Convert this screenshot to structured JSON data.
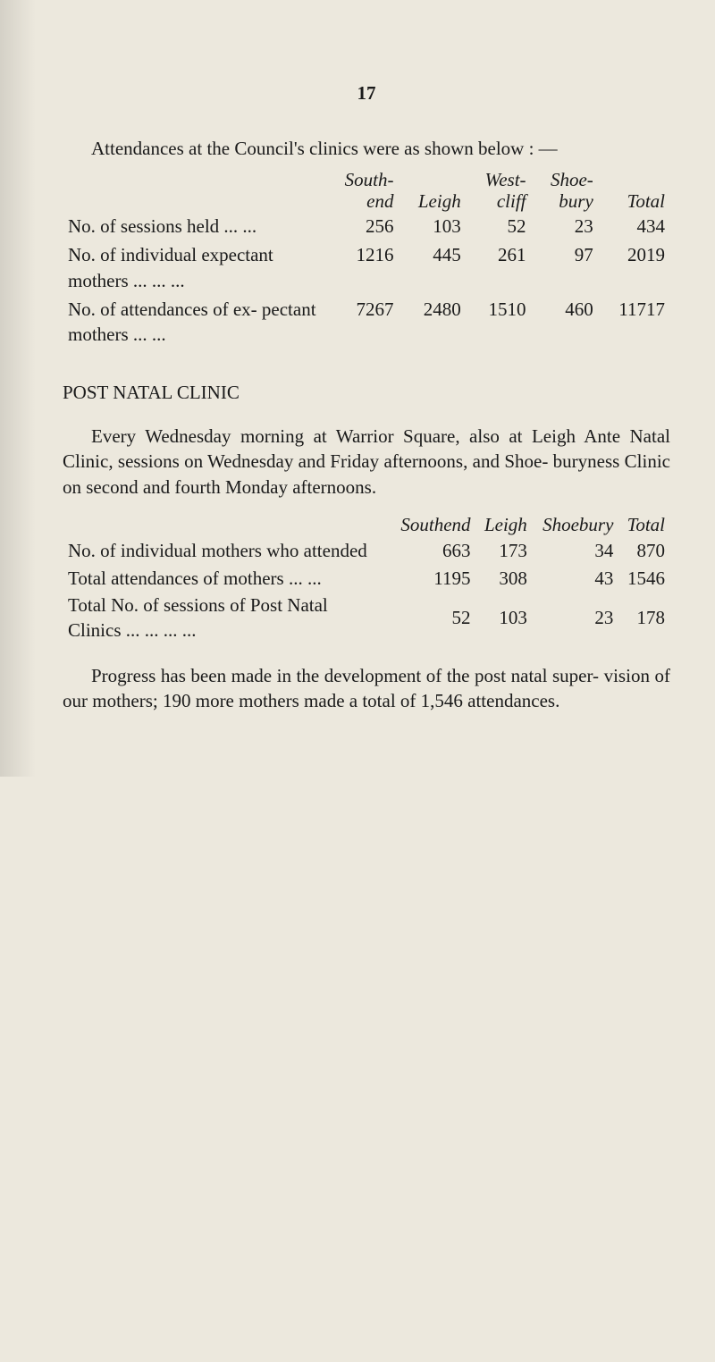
{
  "page_number": "17",
  "intro_text": "Attendances at the Council's clinics were as shown below : —",
  "table1": {
    "headers": [
      "South-\nend",
      "Leigh",
      "West-\ncliff",
      "Shoe-\nbury",
      "Total"
    ],
    "rows": [
      {
        "label": "No. of sessions held  ...        ...",
        "values": [
          "256",
          "103",
          "52",
          "23",
          "434"
        ]
      },
      {
        "label": "No.  of  individual  expectant mothers       ...        ...        ...",
        "values": [
          "1216",
          "445",
          "261",
          "97",
          "2019"
        ]
      },
      {
        "label": "No.  of  attendances  of  ex- pectant mothers   ...        ...",
        "values": [
          "7267",
          "2480",
          "1510",
          "460",
          "11717"
        ]
      }
    ]
  },
  "section_heading": "POST NATAL CLINIC",
  "section_body": "Every Wednesday morning at Warrior Square, also at Leigh Ante Natal Clinic, sessions on Wednesday and Friday afternoons, and Shoe- buryness Clinic on second and fourth Monday afternoons.",
  "table2": {
    "headers": [
      "Southend",
      "Leigh",
      "Shoebury",
      "Total"
    ],
    "rows": [
      {
        "label": "No. of individual mothers who attended",
        "values": [
          "663",
          "173",
          "34",
          "870"
        ]
      },
      {
        "label": "Total attendances of mothers   ...        ...",
        "values": [
          "1195",
          "308",
          "43",
          "1546"
        ]
      },
      {
        "label": "Total  No.  of  sessions  of  Post  Natal Clinics           ...       ...        ...        ...",
        "values": [
          "52",
          "103",
          "23",
          "178"
        ]
      }
    ]
  },
  "closing_text": "Progress has been made in the development of the post natal super- vision of our mothers; 190 more mothers made a total of 1,546 attendances."
}
